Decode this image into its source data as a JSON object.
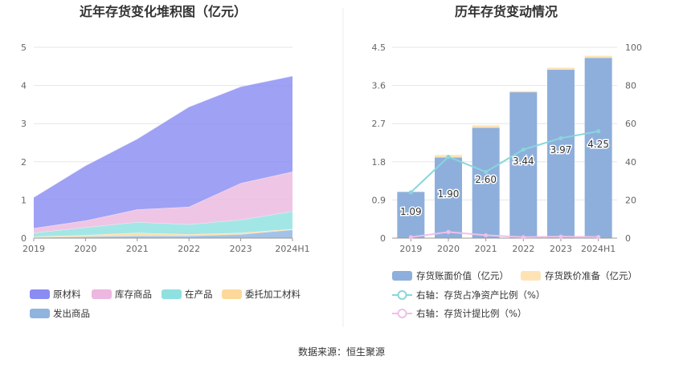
{
  "source": "数据来源：恒生聚源",
  "chart_data": [
    {
      "type": "area",
      "stacked": true,
      "title": "近年存货变化堆积图（亿元）",
      "categories": [
        "2019",
        "2020",
        "2021",
        "2022",
        "2023",
        "2024H1"
      ],
      "ylim": [
        0,
        5
      ],
      "yticks": [
        "0",
        "1",
        "2",
        "3",
        "4",
        "5"
      ],
      "grid": true,
      "legend_position": "bottom",
      "series": [
        {
          "name": "发出商品",
          "color": "#8fb4e0",
          "values": [
            0.02,
            0.04,
            0.06,
            0.06,
            0.1,
            0.22
          ]
        },
        {
          "name": "委托加工材料",
          "color": "#fcd99b",
          "values": [
            0.02,
            0.04,
            0.08,
            0.04,
            0.04,
            0.02
          ]
        },
        {
          "name": "在产品",
          "color": "#8fe0e0",
          "values": [
            0.1,
            0.2,
            0.28,
            0.26,
            0.34,
            0.46
          ]
        },
        {
          "name": "库存商品",
          "color": "#ecb8df",
          "values": [
            0.12,
            0.18,
            0.33,
            0.46,
            0.96,
            1.04
          ]
        },
        {
          "name": "原材料",
          "color": "#8a8cf3",
          "values": [
            0.81,
            1.44,
            1.85,
            2.62,
            2.53,
            2.51
          ]
        }
      ],
      "legend_order": [
        "原材料",
        "库存商品",
        "在产品",
        "委托加工材料",
        "发出商品"
      ]
    },
    {
      "type": "bar",
      "title": "历年存货变动情况",
      "categories": [
        "2019",
        "2020",
        "2021",
        "2022",
        "2023",
        "2024H1"
      ],
      "ylim": [
        0,
        4.5
      ],
      "yticks": [
        "0",
        "0.9",
        "1.8",
        "2.7",
        "3.6",
        "4.5"
      ],
      "y2lim": [
        0,
        100
      ],
      "y2ticks": [
        "0",
        "20",
        "40",
        "60",
        "80",
        "100"
      ],
      "grid": true,
      "legend_position": "bottom",
      "series": [
        {
          "name": "存货账面价值（亿元）",
          "kind": "bar",
          "color": "#8eafdc",
          "values": [
            1.09,
            1.9,
            2.6,
            3.44,
            3.97,
            4.25
          ],
          "labels": [
            "1.09",
            "1.90",
            "2.60",
            "3.44",
            "3.97",
            "4.25"
          ]
        },
        {
          "name": "存货跌价准备（亿元）",
          "kind": "bar-stack",
          "color": "#fde3b6",
          "values": [
            0.0,
            0.06,
            0.06,
            0.03,
            0.05,
            0.05
          ]
        },
        {
          "name": "右轴：存货占净资产比例（%）",
          "kind": "line",
          "axis": "right",
          "color": "#88d6dc",
          "values": [
            24,
            42.6,
            34.7,
            46.4,
            52.4,
            56
          ]
        },
        {
          "name": "右轴：存货计提比例（%）",
          "kind": "line",
          "axis": "right",
          "color": "#efc0e8",
          "values": [
            0.5,
            3.2,
            1.5,
            0.5,
            0.8,
            0.6
          ]
        }
      ]
    }
  ]
}
